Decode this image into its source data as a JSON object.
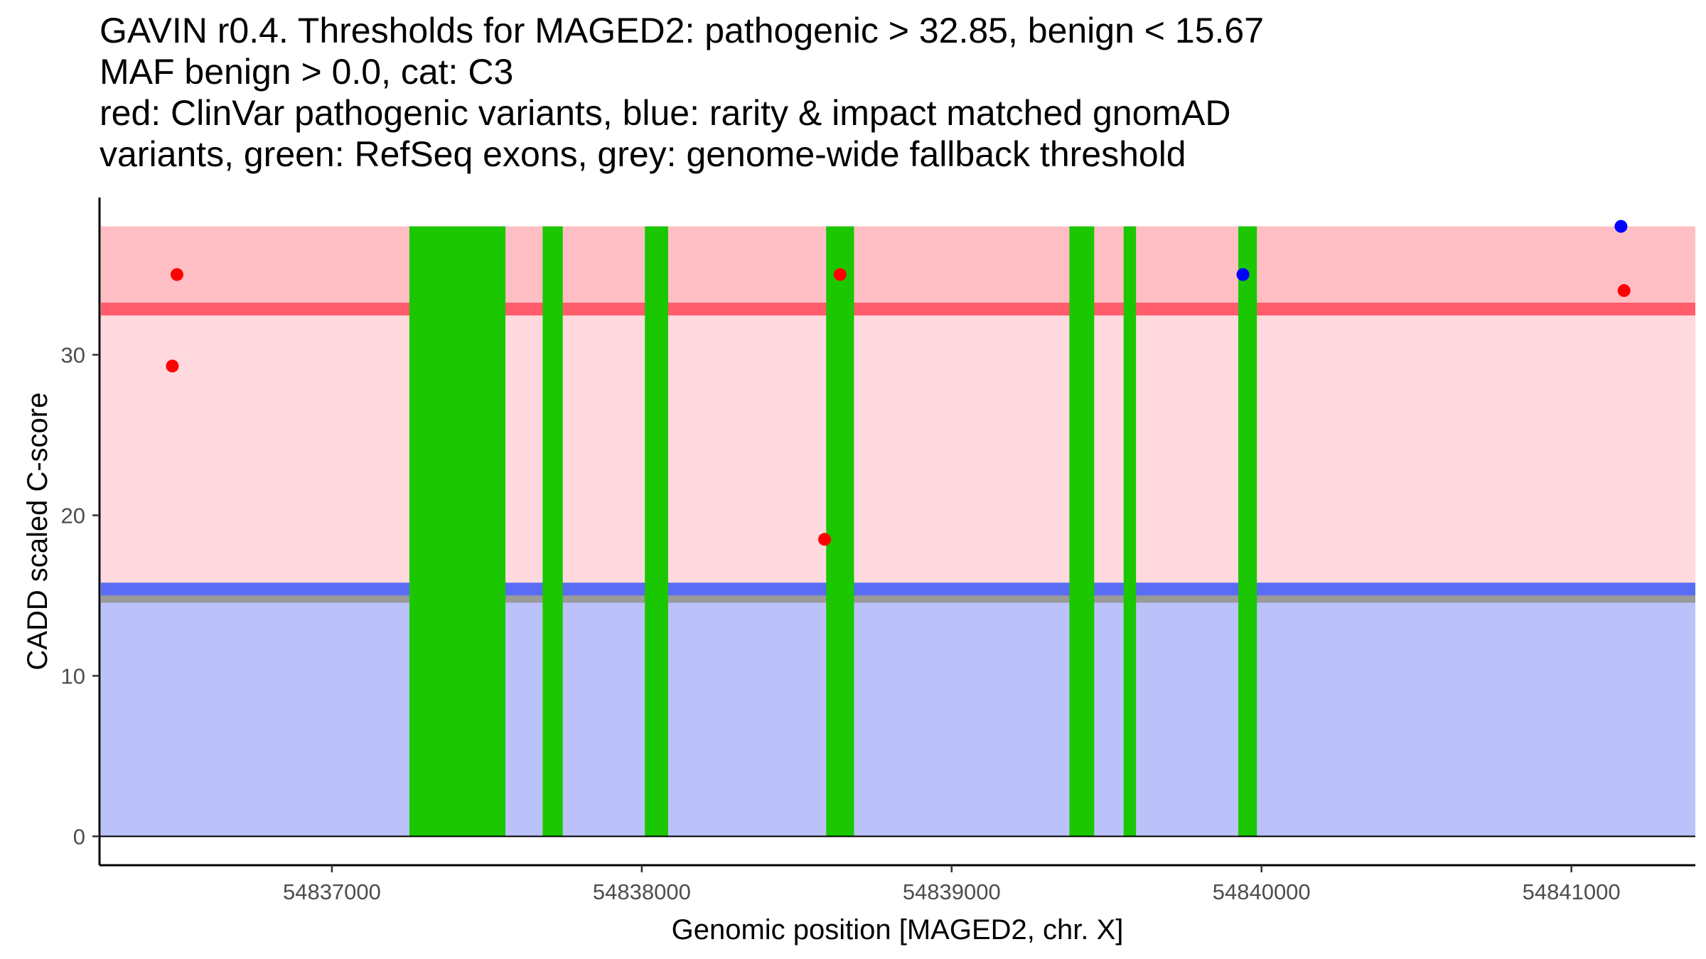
{
  "title_lines": [
    "GAVIN r0.4. Thresholds for MAGED2: pathogenic > 32.85, benign < 15.67",
    "MAF benign > 0.0, cat: C3",
    "red: ClinVar pathogenic variants, blue: rarity & impact matched gnomAD",
    "variants, green: RefSeq exons, grey: genome-wide fallback threshold"
  ],
  "chart_data": {
    "type": "scatter",
    "title": "GAVIN r0.4. Thresholds for MAGED2: pathogenic > 32.85, benign < 15.67",
    "xlabel": "Genomic position [MAGED2, chr. X]",
    "ylabel": "CADD scaled C-score",
    "xlim": [
      54836250,
      54841400
    ],
    "ylim": [
      -1.8,
      39.8
    ],
    "x_ticks": [
      54837000,
      54838000,
      54839000,
      54840000,
      54841000
    ],
    "x_tick_labels": [
      "54837000",
      "54838000",
      "54839000",
      "54840000",
      "54841000"
    ],
    "y_ticks": [
      0,
      10,
      20,
      30
    ],
    "y_tick_labels": [
      "0",
      "10",
      "20",
      "30"
    ],
    "regions": {
      "pathogenic_band": {
        "y0": 15.67,
        "y1": 38,
        "color": "#ffd9dd"
      },
      "pathogenic_upper_band": {
        "y0": 32.85,
        "y1": 38,
        "color": "#ffbec4"
      },
      "benign_band": {
        "y0": 0,
        "y1": 15.67,
        "color": "#bbc2fa"
      },
      "pathogenic_threshold": {
        "y": 32.85,
        "color": "#ff5c6c"
      },
      "benign_threshold": {
        "y": 15.67,
        "color": "#5a6cf4"
      },
      "fallback_threshold": {
        "y": 14.95,
        "color": "#9a9a9a"
      }
    },
    "exons": [
      {
        "start": 54837250,
        "end": 54837560
      },
      {
        "start": 54837680,
        "end": 54837745
      },
      {
        "start": 54838010,
        "end": 54838085
      },
      {
        "start": 54838595,
        "end": 54838685
      },
      {
        "start": 54839380,
        "end": 54839460
      },
      {
        "start": 54839555,
        "end": 54839595
      },
      {
        "start": 54839925,
        "end": 54839985
      }
    ],
    "exon_color": "#1bc700",
    "series": [
      {
        "name": "ClinVar pathogenic variants",
        "color": "#ff0000",
        "points": [
          {
            "x": 54836500,
            "y": 35
          },
          {
            "x": 54836485,
            "y": 29.3
          },
          {
            "x": 54838590,
            "y": 18.5
          },
          {
            "x": 54838640,
            "y": 35
          },
          {
            "x": 54841170,
            "y": 34
          }
        ]
      },
      {
        "name": "rarity & impact matched gnomAD variants",
        "color": "#0000ff",
        "points": [
          {
            "x": 54839940,
            "y": 35
          },
          {
            "x": 54841160,
            "y": 38
          }
        ]
      }
    ]
  }
}
